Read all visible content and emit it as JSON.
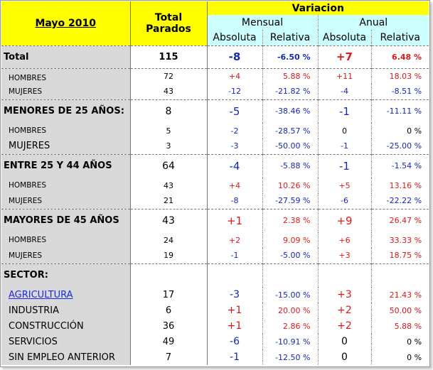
{
  "header": {
    "title": "Mayo 2010",
    "total_label_1": "Total",
    "total_label_2": "Parados",
    "variacion": "Variacion",
    "mensual": "Mensual",
    "anual": "Anual",
    "absoluta": "Absoluta",
    "relativa": "Relativa"
  },
  "rows": [
    {
      "label": "Total",
      "total": "115",
      "m_abs": "-8",
      "m_rel": "-6.50 %",
      "a_abs": "+7",
      "a_rel": "6.48 %"
    },
    {
      "label": "HOMBRES",
      "total": "72",
      "m_abs": "+4",
      "m_rel": "5.88 %",
      "a_abs": "+11",
      "a_rel": "18.03 %"
    },
    {
      "label": "MUJERES",
      "total": "43",
      "m_abs": "-12",
      "m_rel": "-21.82 %",
      "a_abs": "-4",
      "a_rel": "-8.51 %"
    },
    {
      "label": "MENORES DE 25 AÑOS:",
      "total": "8",
      "m_abs": "-5",
      "m_rel": "-38.46 %",
      "a_abs": "-1",
      "a_rel": "-11.11 %"
    },
    {
      "label": "HOMBRES",
      "total": "5",
      "m_abs": "-2",
      "m_rel": "-28.57 %",
      "a_abs": "0",
      "a_rel": "0 %"
    },
    {
      "label": "MUJERES",
      "total": "3",
      "m_abs": "-3",
      "m_rel": "-50.00 %",
      "a_abs": "-1",
      "a_rel": "-25.00 %"
    },
    {
      "label": "ENTRE 25 Y 44 AÑOS",
      "total": "64",
      "m_abs": "-4",
      "m_rel": "-5.88 %",
      "a_abs": "-1",
      "a_rel": "-1.54 %"
    },
    {
      "label": "HOMBRES",
      "total": "43",
      "m_abs": "+4",
      "m_rel": "10.26 %",
      "a_abs": "+5",
      "a_rel": "13.16 %"
    },
    {
      "label": "MUJERES",
      "total": "21",
      "m_abs": "-8",
      "m_rel": "-27.59 %",
      "a_abs": "-6",
      "a_rel": "-22.22 %"
    },
    {
      "label": "MAYORES DE 45 AÑOS",
      "total": "43",
      "m_abs": "+1",
      "m_rel": "2.38 %",
      "a_abs": "+9",
      "a_rel": "26.47 %"
    },
    {
      "label": "HOMBRES",
      "total": "24",
      "m_abs": "+2",
      "m_rel": "9.09 %",
      "a_abs": "+6",
      "a_rel": "33.33 %"
    },
    {
      "label": "MUJERES",
      "total": "19",
      "m_abs": "-1",
      "m_rel": "-5.00 %",
      "a_abs": "+3",
      "a_rel": "18.75 %"
    },
    {
      "label": "SECTOR:"
    },
    {
      "label": "AGRICULTURA",
      "total": "17",
      "m_abs": "-3",
      "m_rel": "-15.00 %",
      "a_abs": "+3",
      "a_rel": "21.43 %"
    },
    {
      "label": "INDUSTRIA",
      "total": "6",
      "m_abs": "+1",
      "m_rel": "20.00 %",
      "a_abs": "+2",
      "a_rel": "50.00 %"
    },
    {
      "label": "CONSTRUCCIÓN",
      "total": "36",
      "m_abs": "+1",
      "m_rel": "2.86 %",
      "a_abs": "+2",
      "a_rel": "5.88 %"
    },
    {
      "label": "SERVICIOS",
      "total": "49",
      "m_abs": "-6",
      "m_rel": "-10.91 %",
      "a_abs": "0",
      "a_rel": "0 %"
    },
    {
      "label": "SIN EMPLEO ANTERIOR",
      "total": "7",
      "m_abs": "-1",
      "m_rel": "-12.50 %",
      "a_abs": "0",
      "a_rel": "0 %"
    }
  ],
  "colors": {
    "positive": "#e01818",
    "negative": "#1428b4",
    "neutral": "#000000",
    "header_yellow": "#ffff00",
    "header_cyan": "#ccffff",
    "label_gray": "#d9d9d9"
  }
}
